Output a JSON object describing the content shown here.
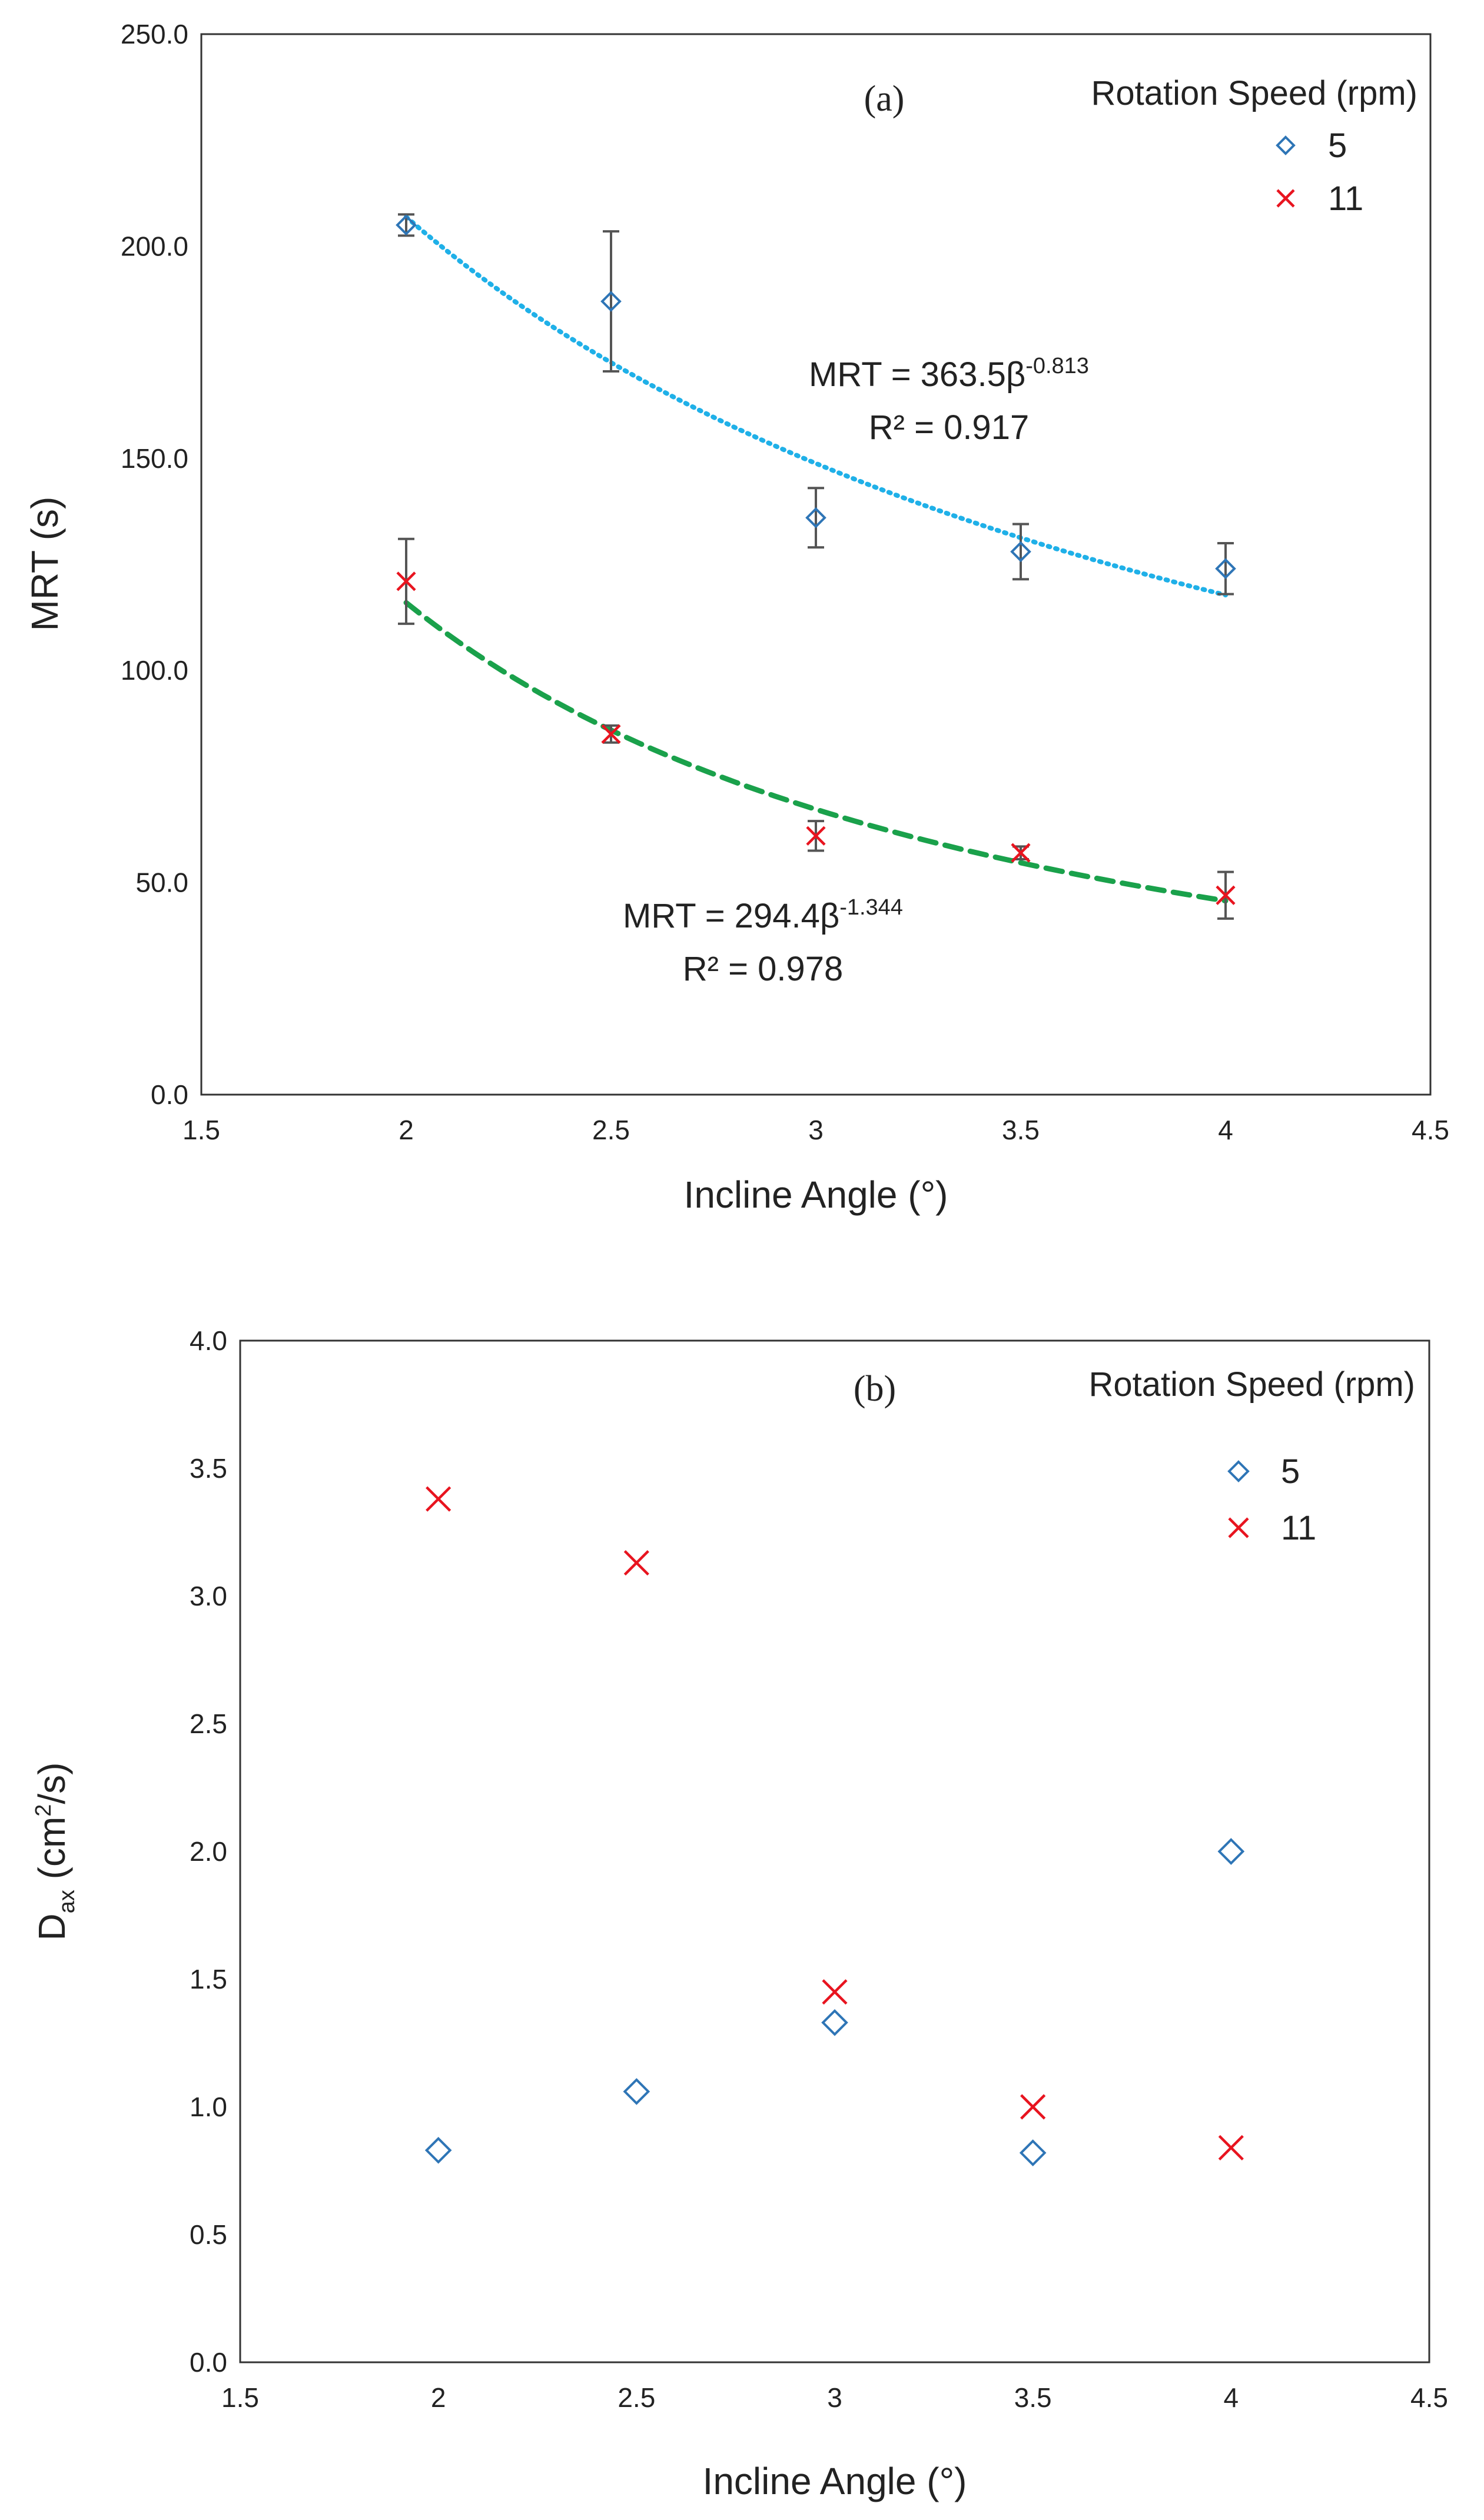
{
  "chart_data": [
    {
      "type": "scatter",
      "panel_label": "(a)",
      "xlabel": "Incline Angle (°)",
      "ylabel": "MRT (s)",
      "xlim": [
        1.5,
        4.5
      ],
      "ylim": [
        0,
        250
      ],
      "x_ticks": [
        "1.5",
        "2",
        "2.5",
        "3",
        "3.5",
        "4",
        "4.5"
      ],
      "y_ticks": [
        "0.0",
        "50.0",
        "100.0",
        "150.0",
        "200.0",
        "250.0"
      ],
      "legend_title": "Rotation Speed (rpm)",
      "legend_position": "top-right",
      "grid": false,
      "series": [
        {
          "name": "5",
          "marker": "diamond",
          "color": "#2e75b6",
          "x": [
            2,
            2.5,
            3,
            3.5,
            4
          ],
          "y": [
            205,
            187,
            136,
            128,
            124
          ],
          "error": [
            2.5,
            16.5,
            7,
            6.5,
            6
          ]
        },
        {
          "name": "11",
          "marker": "x",
          "color": "#e8141f",
          "x": [
            2,
            2.5,
            3,
            3.5,
            4
          ],
          "y": [
            121,
            85,
            61,
            57,
            47
          ],
          "error": [
            10,
            2,
            3.5,
            1.5,
            5.5
          ]
        }
      ],
      "fits": [
        {
          "series": "5",
          "a": 363.5,
          "b": -0.813,
          "style": "dotted",
          "color": "#1fb0e8",
          "eq_main": "MRT = 363.5β",
          "eq_sup": "-0.813",
          "r2": "R² = 0.917"
        },
        {
          "series": "11",
          "a": 294.4,
          "b": -1.344,
          "style": "dashed",
          "color": "#1aa14b",
          "eq_main": "MRT = 294.4β",
          "eq_sup": "-1.344",
          "r2": "R² = 0.978"
        }
      ],
      "errorbar_color": "#555555"
    },
    {
      "type": "scatter",
      "panel_label": "(b)",
      "xlabel": "Incline Angle (°)",
      "ylabel_main": "D",
      "ylabel_sub": "ax",
      "ylabel_unit_pre": " (cm",
      "ylabel_unit_sup": "2",
      "ylabel_unit_post": "/s)",
      "xlim": [
        1.5,
        4.5
      ],
      "ylim": [
        0,
        4
      ],
      "x_ticks": [
        "1.5",
        "2",
        "2.5",
        "3",
        "3.5",
        "4",
        "4.5"
      ],
      "y_ticks": [
        "0.0",
        "0.5",
        "1.0",
        "1.5",
        "2.0",
        "2.5",
        "3.0",
        "3.5",
        "4.0"
      ],
      "legend_title": "Rotation Speed (rpm)",
      "legend_position": "top-right",
      "grid": false,
      "series": [
        {
          "name": "5",
          "marker": "diamond",
          "color": "#2e75b6",
          "x": [
            2,
            2.5,
            3,
            3.5,
            4
          ],
          "y": [
            0.83,
            1.06,
            1.33,
            0.82,
            2.0
          ]
        },
        {
          "name": "11",
          "marker": "x",
          "color": "#e8141f",
          "x": [
            2,
            2.5,
            3,
            3.5,
            4
          ],
          "y": [
            3.38,
            3.13,
            1.45,
            1.0,
            0.84
          ]
        }
      ]
    }
  ]
}
